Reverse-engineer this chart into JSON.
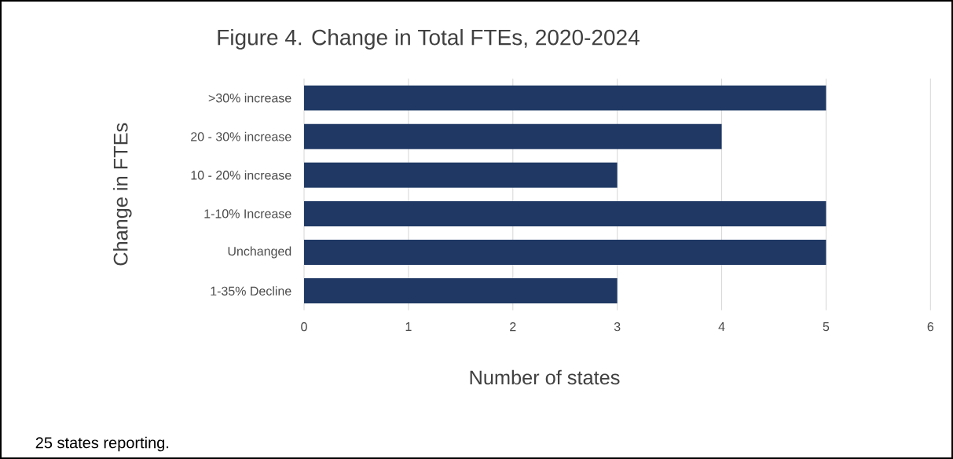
{
  "chart_data": {
    "type": "bar",
    "orientation": "horizontal",
    "title": "Figure 4. Change in Total FTEs, 2020-2024",
    "xlabel": "Number of states",
    "ylabel": "Change in FTEs",
    "categories": [
      ">30% increase",
      "20 - 30% increase",
      "10 - 20% increase",
      "1-10% Increase",
      "Unchanged",
      "1-35% Decline"
    ],
    "values": [
      5,
      4,
      3,
      5,
      5,
      3
    ],
    "color": "#1f3864",
    "xlim": [
      0,
      6
    ],
    "xticks": [
      0,
      1,
      2,
      3,
      4,
      5,
      6
    ],
    "grid": "x",
    "annotations": [
      "25 states reporting."
    ]
  }
}
